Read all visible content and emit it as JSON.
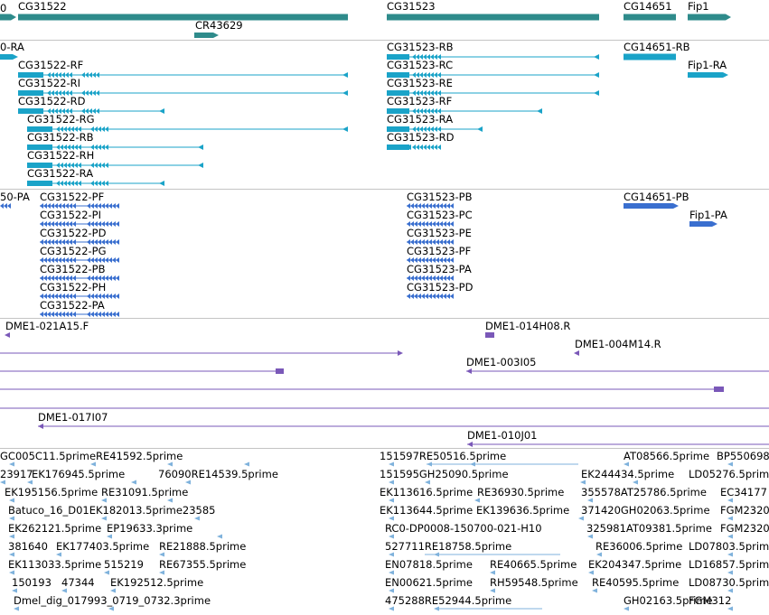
{
  "colors": {
    "gene": "#2e8b8b",
    "mrna": "#1aa3c8",
    "protein": "#3a6fcf",
    "bac": "#7a58b8",
    "est": "#7fb2dc",
    "separator": "#c4c4c4"
  },
  "gene_track": {
    "labels": [
      "0",
      "CG31522",
      "CR43629",
      "CG31523",
      "CG14651",
      "Fip1"
    ]
  },
  "mrna_track": {
    "labels": [
      "0-RA",
      "CG31522-RF",
      "CG31522-RI",
      "CG31522-RD",
      "CG31522-RG",
      "CG31522-RB",
      "CG31522-RH",
      "CG31522-RA",
      "CG31523-RB",
      "CG31523-RC",
      "CG31523-RE",
      "CG31523-RF",
      "CG31523-RA",
      "CG31523-RD",
      "CG14651-RB",
      "Fip1-RA"
    ]
  },
  "protein_track": {
    "labels": [
      "50-PA",
      "CG31522-PF",
      "CG31522-PI",
      "CG31522-PD",
      "CG31522-PG",
      "CG31522-PB",
      "CG31522-PH",
      "CG31522-PA",
      "CG31523-PB",
      "CG31523-PC",
      "CG31523-PE",
      "CG31523-PF",
      "CG31523-PA",
      "CG31523-PD",
      "CG14651-PB",
      "Fip1-PA"
    ]
  },
  "bac_track": {
    "labels": [
      "DME1-021A15.F",
      "DME1-014H08.R",
      "DME1-004M14.R",
      "DME1-003I05",
      "DME1-017I07",
      "DME1-010J01"
    ]
  },
  "est_track": {
    "labels": [
      "GC005C11.5prime",
      "RE41592.5prime",
      "151597RE50516.5prime",
      "AT08566.5prime",
      "BP550698",
      "23917",
      "EK176945.5prime",
      "76090RE14539.5prime",
      "151595GH25090.5prime",
      "EK244434.5prime",
      "LD05276.5prime",
      "EK195156.5prime",
      "RE31091.5prime",
      "EK113616.5prime",
      "RE36930.5prime",
      "355578AT25786.5prime",
      "EC34177",
      "Batuco_16_D01EK182013.5prime23585",
      "EK113644.5prime",
      "EK139636.5prime",
      "371420GH02063.5prime",
      "FGM2320",
      "EK262121.5prime",
      "EP19633.3prime",
      "RC0-DP0008-150700-021-H10",
      "325981AT09381.5prime",
      "FGM2320",
      "381640",
      "EK177403.5prime",
      "RE21888.5prime",
      "527711RE18758.5prime",
      "RE36006.5prime",
      "LD07803.5prime",
      "EK113033.5prime",
      "515219",
      "RE67355.5prime",
      "EN07818.5prime",
      "RE40665.5prime",
      "EK204347.5prime",
      "LD16857.5prime",
      "150193",
      "47344",
      "EK192512.5prime",
      "EN00621.5prime",
      "RH59548.5prime",
      "RE40595.5prime",
      "LD08730.5prime",
      "Dmel_dig_017993_0719_0732.3prime",
      "475288RE52944.5prime",
      "GH02163.5prime",
      "FGM312"
    ]
  }
}
